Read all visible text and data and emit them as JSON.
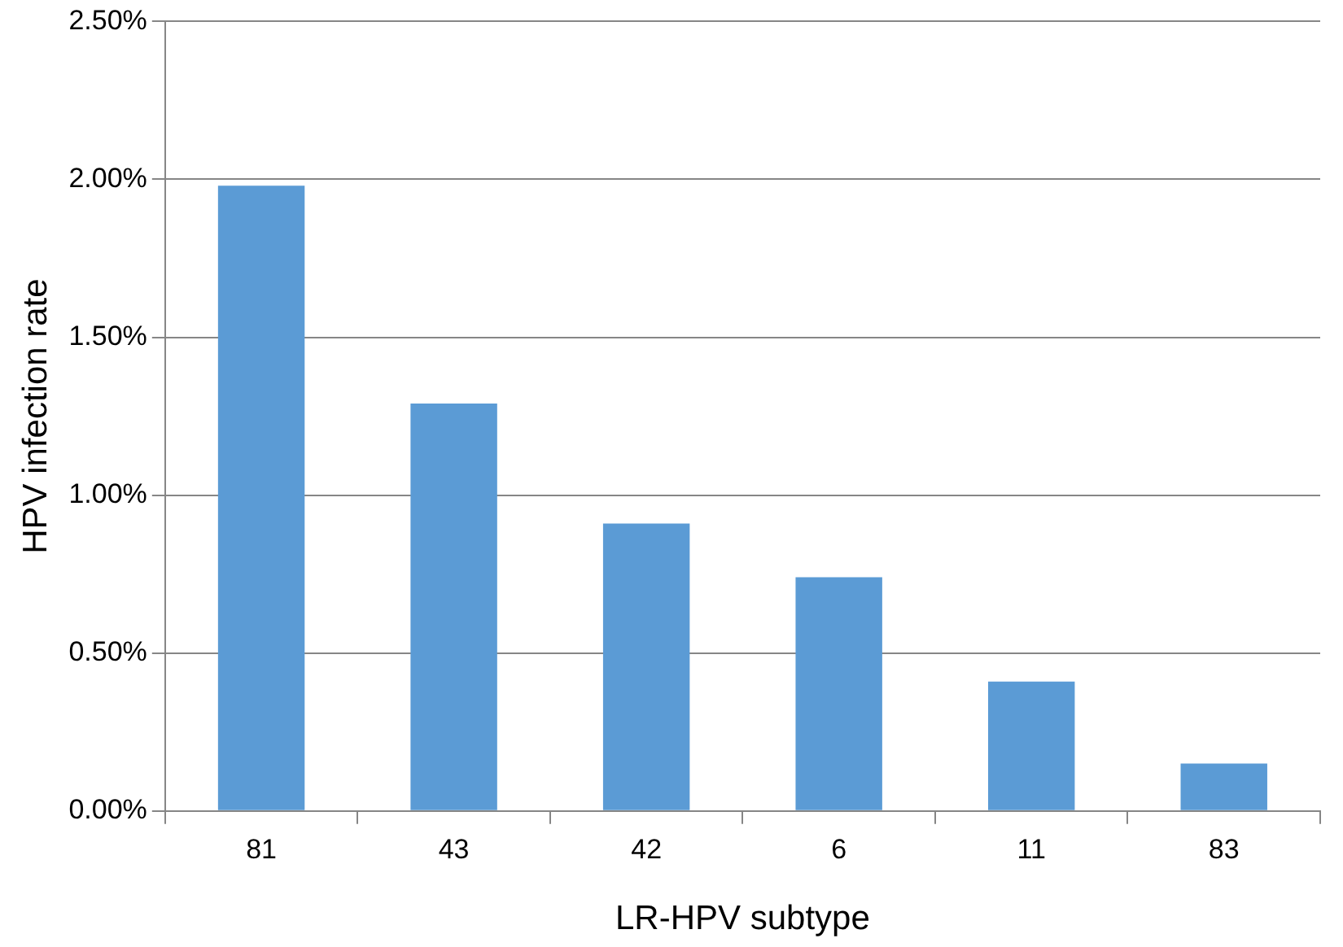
{
  "chart_data": {
    "type": "bar",
    "xlabel": "LR-HPV subtype",
    "ylabel": "HPV infection rate",
    "categories": [
      "81",
      "43",
      "42",
      "6",
      "11",
      "83"
    ],
    "values": [
      1.98,
      1.29,
      0.91,
      0.74,
      0.41,
      0.15
    ],
    "color": "#5b9bd5",
    "ylim": [
      0,
      2.5
    ],
    "yticks": [
      {
        "value": 0,
        "label": "0.00%"
      },
      {
        "value": 0.5,
        "label": "0.50%"
      },
      {
        "value": 1,
        "label": "1.00%"
      },
      {
        "value": 1.5,
        "label": "1.50%"
      },
      {
        "value": 2,
        "label": "2.00%"
      },
      {
        "value": 2.5,
        "label": "2.50%"
      }
    ],
    "grid": "y",
    "legend": false
  }
}
